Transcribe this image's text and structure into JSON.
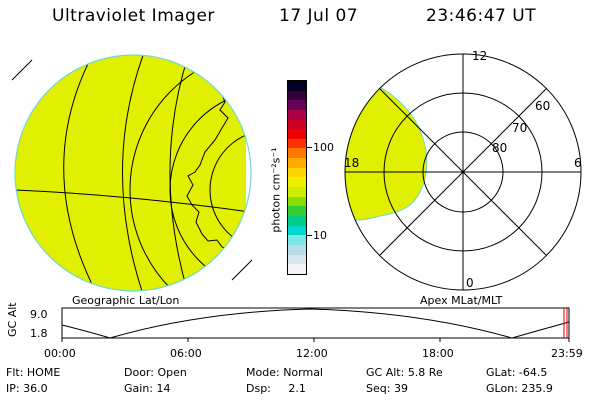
{
  "header": {
    "instrument": "Ultraviolet Imager",
    "date": "17 Jul 07",
    "time": "23:46:47 UT"
  },
  "left_panel": {
    "caption": "Geographic Lat/Lon"
  },
  "right_panel": {
    "caption": "Apex MLat/MLT",
    "mlt_labels": {
      "top": "12",
      "left": "18",
      "right": "6",
      "bottom": "0"
    },
    "lat_labels": [
      "60",
      "70",
      "80"
    ]
  },
  "colorbar": {
    "unit_label": "photon cm⁻²s⁻¹",
    "tick_100": "100",
    "tick_10": "10",
    "colors_bottom_to_top": [
      "#f4f4f4",
      "#d8e6ee",
      "#b8dde6",
      "#7fe6e6",
      "#00d8d0",
      "#00cc88",
      "#33cc33",
      "#88dd00",
      "#ccee00",
      "#eef000",
      "#ffd700",
      "#ffaa00",
      "#ff7700",
      "#ff3300",
      "#ee0000",
      "#cc0022",
      "#aa0044",
      "#660055",
      "#33003a",
      "#000022"
    ],
    "fill_color": "#e0f000"
  },
  "timeline": {
    "axis_label": "GC Alt",
    "y_max": "9.0",
    "y_min": "1.8",
    "ticks": [
      "00:00",
      "06:00",
      "12:00",
      "18:00",
      "23:59"
    ]
  },
  "footer": {
    "row1": [
      {
        "key": "Flt:",
        "value": "HOME"
      },
      {
        "key": "Door:",
        "value": "Open"
      },
      {
        "key": "Mode:",
        "value": "Normal"
      },
      {
        "key": "GC Alt:",
        "value": "5.8 Re"
      },
      {
        "key": "GLat:",
        "value": "-64.5"
      }
    ],
    "row2": [
      {
        "key": "IP:",
        "value": "36.0"
      },
      {
        "key": "Gain:",
        "value": "14"
      },
      {
        "key": "Dsp:",
        "value": "2.1"
      },
      {
        "key": "Seq:",
        "value": "39"
      },
      {
        "key": "GLon:",
        "value": "235.9"
      }
    ]
  }
}
